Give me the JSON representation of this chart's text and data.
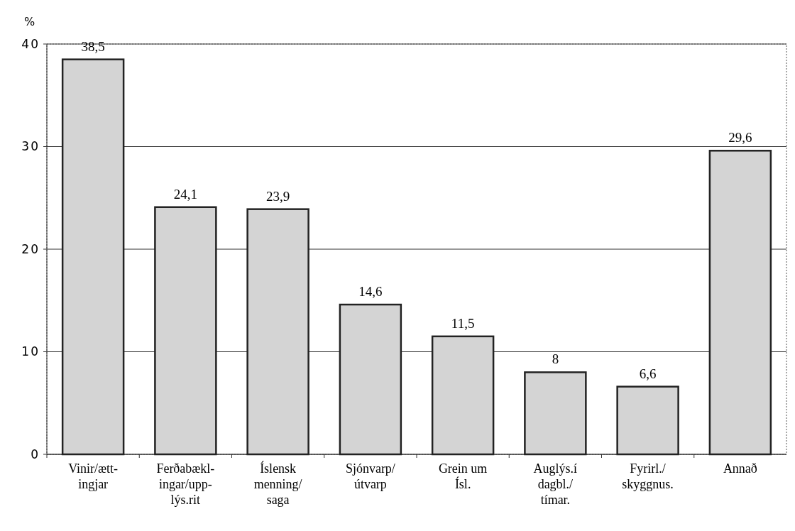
{
  "chart_data": {
    "type": "bar",
    "ylabel": "%",
    "categories": [
      "Vinir/ætt-\ningjar",
      "Ferðabækl-\ningar/upp-\nlýs.rit",
      "Íslensk\nmenning/\nsaga",
      "Sjónvarp/\nútvarp",
      "Grein um\nÍsl.",
      "Auglýs.í\ndagbl./\ntímar.",
      "Fyrirl./\nskyggnus.",
      "Annað"
    ],
    "values": [
      38.5,
      24.1,
      23.9,
      14.6,
      11.5,
      8,
      6.6,
      29.6
    ],
    "value_labels": [
      "38,5",
      "24,1",
      "23,9",
      "14,6",
      "11,5",
      "8",
      "6,6",
      "29,6"
    ],
    "color": "#d4d4d4",
    "ylim": [
      0,
      40
    ],
    "yticks": [
      0,
      10,
      20,
      30,
      40
    ],
    "grid": "y"
  }
}
